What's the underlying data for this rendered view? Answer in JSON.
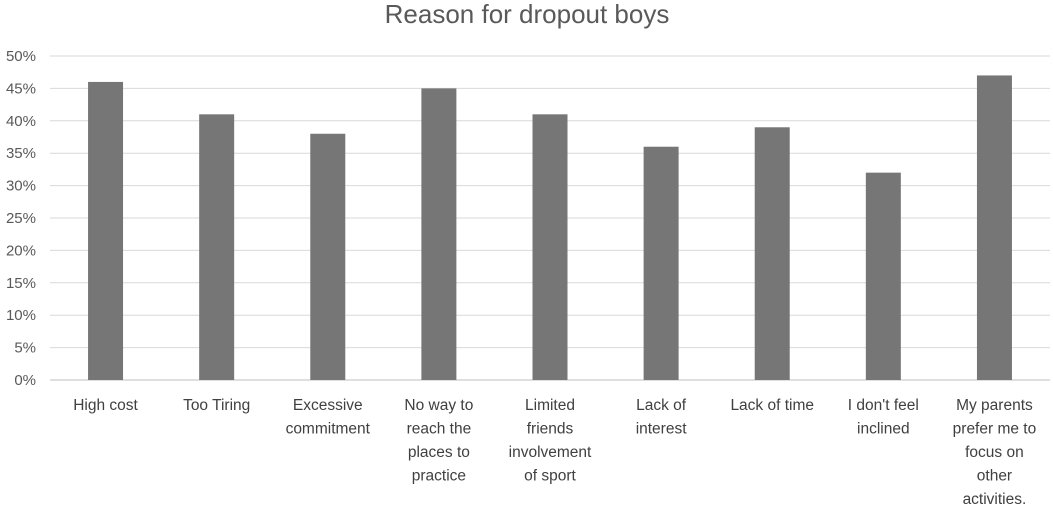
{
  "chart_data": {
    "type": "bar",
    "title": "Reason for dropout boys",
    "xlabel": "",
    "ylabel": "",
    "ylim": [
      0,
      50
    ],
    "y_ticks": [
      0,
      5,
      10,
      15,
      20,
      25,
      30,
      35,
      40,
      45,
      50
    ],
    "y_tick_labels": [
      "0%",
      "5%",
      "10%",
      "15%",
      "20%",
      "25%",
      "30%",
      "35%",
      "40%",
      "45%",
      "50%"
    ],
    "y_unit": "%",
    "grid": true,
    "legend": "none",
    "bar_color": "#767676",
    "categories": [
      "High cost",
      "Too Tiring",
      "Excessive commitment",
      "No way to reach the places to practice",
      "Limited friends involvement of sport",
      "Lack of interest",
      "Lack of time",
      "I don't feel inclined",
      "My parents prefer me to focus on other activities."
    ],
    "category_label_lines": [
      [
        "High cost"
      ],
      [
        "Too Tiring"
      ],
      [
        "Excessive",
        "commitment"
      ],
      [
        "No way to",
        "reach the",
        "places to",
        "practice"
      ],
      [
        "Limited",
        "friends",
        "involvement",
        "of sport"
      ],
      [
        "Lack of",
        "interest"
      ],
      [
        "Lack of time"
      ],
      [
        "I don't feel",
        "inclined"
      ],
      [
        "My parents",
        "prefer me to",
        "focus on",
        "other",
        "activities."
      ]
    ],
    "values": [
      46,
      41,
      38,
      45,
      41,
      36,
      39,
      32,
      47
    ]
  }
}
